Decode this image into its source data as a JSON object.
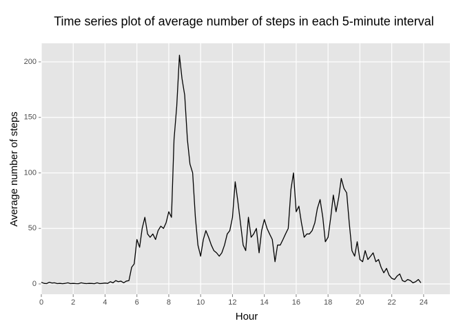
{
  "chart_data": {
    "type": "line",
    "title": "Time series plot of average number of steps in each 5-minute interval",
    "xlabel": "Hour",
    "ylabel": "Average number of steps",
    "x": [
      0,
      0.17,
      0.33,
      0.5,
      0.67,
      0.83,
      1,
      1.17,
      1.33,
      1.5,
      1.67,
      1.83,
      2,
      2.17,
      2.33,
      2.5,
      2.67,
      2.83,
      3,
      3.17,
      3.33,
      3.5,
      3.67,
      3.83,
      4,
      4.17,
      4.33,
      4.5,
      4.67,
      4.83,
      5,
      5.17,
      5.33,
      5.5,
      5.67,
      5.83,
      6,
      6.17,
      6.33,
      6.5,
      6.67,
      6.83,
      7,
      7.17,
      7.33,
      7.5,
      7.67,
      7.83,
      8,
      8.17,
      8.33,
      8.5,
      8.67,
      8.83,
      9,
      9.17,
      9.33,
      9.5,
      9.67,
      9.83,
      10,
      10.17,
      10.33,
      10.5,
      10.67,
      10.83,
      11,
      11.17,
      11.33,
      11.5,
      11.67,
      11.83,
      12,
      12.17,
      12.33,
      12.5,
      12.67,
      12.83,
      13,
      13.17,
      13.33,
      13.5,
      13.67,
      13.83,
      14,
      14.17,
      14.33,
      14.5,
      14.67,
      14.83,
      15,
      15.17,
      15.33,
      15.5,
      15.67,
      15.83,
      16,
      16.17,
      16.33,
      16.5,
      16.67,
      16.83,
      17,
      17.17,
      17.33,
      17.5,
      17.67,
      17.83,
      18,
      18.17,
      18.33,
      18.5,
      18.67,
      18.83,
      19,
      19.17,
      19.33,
      19.5,
      19.67,
      19.83,
      20,
      20.17,
      20.33,
      20.5,
      20.67,
      20.83,
      21,
      21.17,
      21.33,
      21.5,
      21.67,
      21.83,
      22,
      22.17,
      22.33,
      22.5,
      22.67,
      22.83,
      23,
      23.17,
      23.33,
      23.5,
      23.67,
      23.83
    ],
    "series": [
      {
        "color": "#000000",
        "values": [
          1.5,
          0.5,
          0.3,
          1.5,
          0.8,
          1,
          0.3,
          0.5,
          0.2,
          0.5,
          1,
          0.3,
          0.5,
          0.3,
          0.2,
          1,
          0.5,
          0.3,
          0.5,
          0.4,
          0.2,
          1,
          0.3,
          0.5,
          0.8,
          0.5,
          2,
          1,
          3,
          2,
          2.5,
          1,
          2.5,
          3,
          15,
          18,
          40,
          33,
          50,
          60,
          45,
          42,
          45,
          40,
          48,
          52,
          50,
          55,
          65,
          60,
          130,
          160,
          206,
          185,
          170,
          130,
          108,
          100,
          60,
          35,
          25,
          40,
          48,
          42,
          35,
          30,
          28,
          25,
          28,
          35,
          45,
          48,
          60,
          92,
          75,
          55,
          35,
          30,
          60,
          42,
          45,
          50,
          28,
          48,
          58,
          50,
          45,
          40,
          20,
          35,
          35,
          40,
          45,
          50,
          85,
          100,
          65,
          70,
          55,
          42,
          45,
          45,
          48,
          55,
          68,
          76,
          60,
          38,
          42,
          60,
          80,
          65,
          78,
          95,
          86,
          82,
          55,
          30,
          25,
          38,
          22,
          20,
          30,
          22,
          25,
          28,
          20,
          22,
          15,
          10,
          14,
          8,
          5,
          4,
          7,
          9,
          3,
          2,
          4,
          3,
          1,
          2,
          4,
          1
        ]
      }
    ],
    "xlim": [
      0,
      25.65
    ],
    "ylim": [
      -9.3,
      216.7
    ],
    "xticks": [
      0,
      2,
      4,
      6,
      8,
      10,
      12,
      14,
      16,
      18,
      20,
      22,
      24
    ],
    "yticks": [
      0,
      50,
      100,
      150,
      200
    ],
    "grid": true
  }
}
